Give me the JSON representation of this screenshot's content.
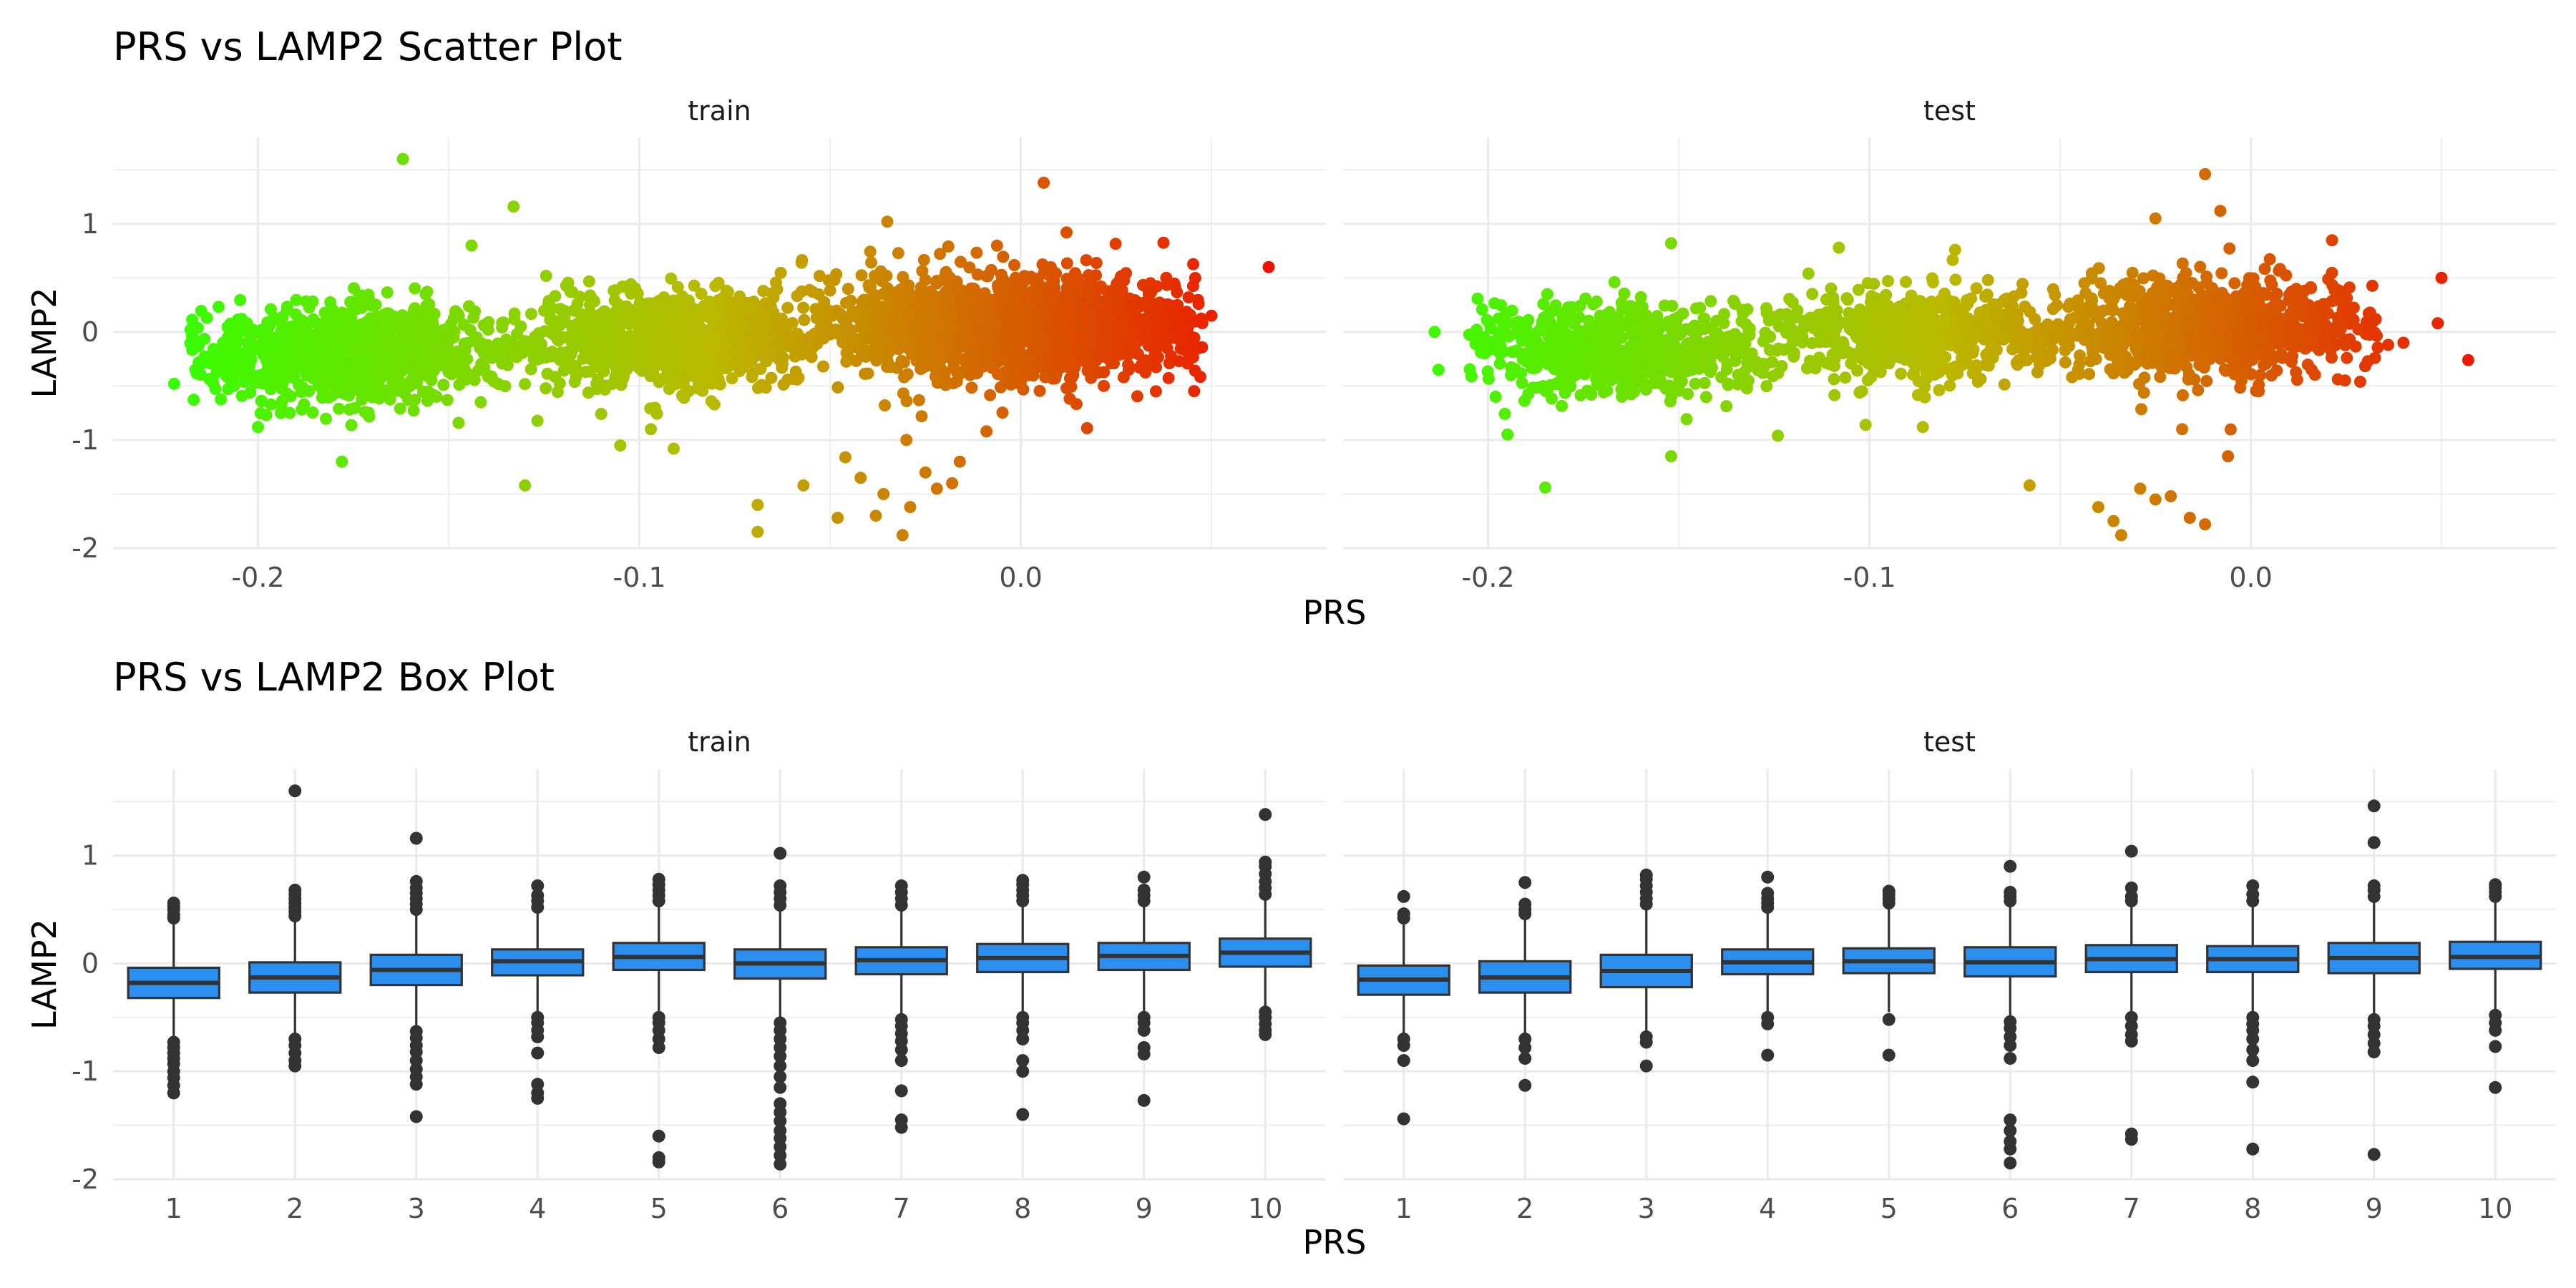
{
  "chart_data": [
    {
      "type": "scatter",
      "title": "PRS vs LAMP2 Scatter Plot",
      "xlabel": "PRS",
      "ylabel": "LAMP2",
      "color_scale": {
        "low": "#33ff00",
        "mid": "#bbb800",
        "high": "#ee1100"
      },
      "panels": [
        {
          "strip": "train",
          "xlim": [
            -0.238,
            0.08
          ],
          "ylim": [
            -2,
            1.8
          ],
          "xticks": [
            -0.2,
            -0.1,
            0.0
          ],
          "xtick_labels": [
            "-0.2",
            "-0.1",
            "0.0"
          ],
          "yticks": [
            -2,
            -1,
            0,
            1
          ],
          "ytick_labels": [
            "-2",
            "-1",
            "0",
            "1"
          ],
          "clusters": [
            {
              "x_min": -0.218,
              "x_max": -0.135,
              "x_center": -0.175,
              "y_mean": -0.2,
              "y_sd": 0.22,
              "n": 1000
            },
            {
              "x_min": -0.135,
              "x_max": -0.058,
              "x_center": -0.09,
              "y_mean": -0.08,
              "y_sd": 0.22,
              "n": 900
            },
            {
              "x_min": -0.058,
              "x_max": 0.048,
              "x_center": 0.0,
              "y_mean": 0.05,
              "y_sd": 0.24,
              "n": 1400
            }
          ],
          "outliers": [
            {
              "x": -0.162,
              "y": 1.6
            },
            {
              "x": -0.133,
              "y": 1.16
            },
            {
              "x": -0.035,
              "y": 1.02
            },
            {
              "x": 0.006,
              "y": 1.38
            },
            {
              "x": 0.065,
              "y": 0.6
            },
            {
              "x": 0.012,
              "y": 0.92
            },
            {
              "x": -0.13,
              "y": -1.42
            },
            {
              "x": -0.069,
              "y": -1.85
            },
            {
              "x": -0.069,
              "y": -1.6
            },
            {
              "x": -0.048,
              "y": -1.72
            },
            {
              "x": -0.031,
              "y": -1.88
            },
            {
              "x": -0.042,
              "y": -1.35
            },
            {
              "x": -0.036,
              "y": -1.5
            },
            {
              "x": -0.029,
              "y": -1.62
            },
            {
              "x": -0.022,
              "y": -1.45
            },
            {
              "x": -0.018,
              "y": -1.4
            },
            {
              "x": -0.057,
              "y": -1.42
            },
            {
              "x": -0.038,
              "y": -1.7
            },
            {
              "x": -0.025,
              "y": -1.3
            },
            {
              "x": -0.016,
              "y": -1.2
            },
            {
              "x": -0.03,
              "y": -1.0
            },
            {
              "x": -0.046,
              "y": -1.16
            },
            {
              "x": -0.009,
              "y": -0.92
            },
            {
              "x": -0.026,
              "y": -0.78
            },
            {
              "x": -0.178,
              "y": -1.2
            },
            {
              "x": -0.2,
              "y": -0.88
            },
            {
              "x": -0.194,
              "y": -0.75
            },
            {
              "x": -0.105,
              "y": -1.05
            },
            {
              "x": -0.097,
              "y": -0.9
            },
            {
              "x": -0.091,
              "y": -1.08
            },
            {
              "x": -0.222,
              "y": -0.48
            },
            {
              "x": -0.215,
              "y": -0.3
            },
            {
              "x": 0.044,
              "y": 0.32
            },
            {
              "x": 0.05,
              "y": 0.15
            },
            {
              "x": 0.034,
              "y": 0.45
            },
            {
              "x": -0.144,
              "y": 0.8
            }
          ]
        },
        {
          "strip": "test",
          "xlim": [
            -0.238,
            0.08
          ],
          "ylim": [
            -2,
            1.8
          ],
          "xticks": [
            -0.2,
            -0.1,
            0.0
          ],
          "xtick_labels": [
            "-0.2",
            "-0.1",
            "0.0"
          ],
          "yticks": [
            -2,
            -1,
            0,
            1
          ],
          "ytick_labels": [
            "-2",
            "-1",
            "0",
            "1"
          ],
          "clusters": [
            {
              "x_min": -0.206,
              "x_max": -0.125,
              "x_center": -0.165,
              "y_mean": -0.18,
              "y_sd": 0.22,
              "n": 650
            },
            {
              "x_min": -0.125,
              "x_max": -0.05,
              "x_center": -0.085,
              "y_mean": -0.02,
              "y_sd": 0.22,
              "n": 600
            },
            {
              "x_min": -0.05,
              "x_max": 0.034,
              "x_center": -0.012,
              "y_mean": 0.05,
              "y_sd": 0.24,
              "n": 850
            }
          ],
          "outliers": [
            {
              "x": -0.012,
              "y": 1.46
            },
            {
              "x": -0.008,
              "y": 1.12
            },
            {
              "x": -0.025,
              "y": 1.05
            },
            {
              "x": 0.057,
              "y": -0.26
            },
            {
              "x": 0.05,
              "y": 0.5
            },
            {
              "x": 0.049,
              "y": 0.08
            },
            {
              "x": -0.185,
              "y": -1.44
            },
            {
              "x": -0.058,
              "y": -1.42
            },
            {
              "x": -0.04,
              "y": -1.62
            },
            {
              "x": -0.036,
              "y": -1.75
            },
            {
              "x": -0.034,
              "y": -1.88
            },
            {
              "x": -0.029,
              "y": -1.45
            },
            {
              "x": -0.025,
              "y": -1.55
            },
            {
              "x": -0.021,
              "y": -1.52
            },
            {
              "x": -0.016,
              "y": -1.72
            },
            {
              "x": -0.012,
              "y": -1.78
            },
            {
              "x": -0.006,
              "y": -1.15
            },
            {
              "x": -0.018,
              "y": -0.9
            },
            {
              "x": -0.152,
              "y": -1.15
            },
            {
              "x": -0.124,
              "y": -0.96
            },
            {
              "x": -0.101,
              "y": -0.86
            },
            {
              "x": -0.086,
              "y": -0.88
            },
            {
              "x": -0.213,
              "y": -0.35
            },
            {
              "x": -0.214,
              "y": 0.0
            },
            {
              "x": -0.198,
              "y": -0.6
            },
            {
              "x": -0.152,
              "y": 0.82
            },
            {
              "x": -0.108,
              "y": 0.78
            },
            {
              "x": 0.036,
              "y": -0.12
            },
            {
              "x": 0.04,
              "y": -0.1
            }
          ]
        }
      ]
    },
    {
      "type": "box",
      "title": "PRS vs LAMP2 Box Plot",
      "xlabel": "PRS",
      "ylabel": "LAMP2",
      "fill_color": "#2b8ff0",
      "categories": [
        "1",
        "2",
        "3",
        "4",
        "5",
        "6",
        "7",
        "8",
        "9",
        "10"
      ],
      "panels": [
        {
          "strip": "train",
          "ylim": [
            -2,
            1.8
          ],
          "yticks": [
            -2,
            -1,
            0,
            1
          ],
          "ytick_labels": [
            "-2",
            "-1",
            "0",
            "1"
          ],
          "boxes": [
            {
              "label": "1",
              "q1": -0.32,
              "median": -0.18,
              "q3": -0.04,
              "wlo": -0.7,
              "whi": 0.4,
              "outliers": [
                0.42,
                0.45,
                0.5,
                0.53,
                0.56,
                -0.73,
                -0.78,
                -0.83,
                -0.88,
                -0.93,
                -1.0,
                -1.06,
                -1.13,
                -1.2
              ]
            },
            {
              "label": "2",
              "q1": -0.27,
              "median": -0.13,
              "q3": 0.01,
              "wlo": -0.65,
              "whi": 0.4,
              "outliers": [
                0.44,
                0.48,
                0.52,
                0.56,
                0.6,
                0.64,
                0.68,
                1.6,
                -0.7,
                -0.76,
                -0.83,
                -0.9,
                -0.95
              ]
            },
            {
              "label": "3",
              "q1": -0.2,
              "median": -0.06,
              "q3": 0.08,
              "wlo": -0.6,
              "whi": 0.45,
              "outliers": [
                0.5,
                0.55,
                0.6,
                0.65,
                0.7,
                0.76,
                1.16,
                -0.63,
                -0.69,
                -0.76,
                -0.82,
                -0.9,
                -0.98,
                -1.05,
                -1.12,
                -1.42
              ]
            },
            {
              "label": "4",
              "q1": -0.11,
              "median": 0.02,
              "q3": 0.13,
              "wlo": -0.45,
              "whi": 0.48,
              "outliers": [
                0.52,
                0.58,
                0.63,
                0.72,
                -0.5,
                -0.55,
                -0.62,
                -0.68,
                -0.83,
                -1.12,
                -1.2,
                -1.25
              ]
            },
            {
              "label": "5",
              "q1": -0.06,
              "median": 0.06,
              "q3": 0.19,
              "wlo": -0.44,
              "whi": 0.55,
              "outliers": [
                0.58,
                0.63,
                0.68,
                0.73,
                0.78,
                -0.5,
                -0.55,
                -0.62,
                -0.7,
                -0.78,
                -1.6,
                -1.8,
                -1.84
              ]
            },
            {
              "label": "6",
              "q1": -0.14,
              "median": 0.0,
              "q3": 0.13,
              "wlo": -0.52,
              "whi": 0.5,
              "outliers": [
                0.54,
                0.6,
                0.66,
                0.72,
                1.02,
                -0.55,
                -0.62,
                -0.7,
                -0.78,
                -0.86,
                -0.95,
                -1.05,
                -1.15,
                -1.3,
                -1.38,
                -1.46,
                -1.55,
                -1.62,
                -1.7,
                -1.78,
                -1.86
              ]
            },
            {
              "label": "7",
              "q1": -0.1,
              "median": 0.03,
              "q3": 0.15,
              "wlo": -0.48,
              "whi": 0.5,
              "outliers": [
                0.54,
                0.6,
                0.66,
                0.72,
                -0.52,
                -0.58,
                -0.65,
                -0.72,
                -0.8,
                -0.9,
                -1.18,
                -1.45,
                -1.52
              ]
            },
            {
              "label": "8",
              "q1": -0.08,
              "median": 0.05,
              "q3": 0.18,
              "wlo": -0.46,
              "whi": 0.55,
              "outliers": [
                0.58,
                0.63,
                0.68,
                0.73,
                0.77,
                -0.5,
                -0.55,
                -0.62,
                -0.7,
                -0.9,
                -1.0,
                -1.4
              ]
            },
            {
              "label": "9",
              "q1": -0.06,
              "median": 0.07,
              "q3": 0.19,
              "wlo": -0.44,
              "whi": 0.55,
              "outliers": [
                0.58,
                0.63,
                0.68,
                0.8,
                -0.5,
                -0.55,
                -0.62,
                -0.78,
                -0.84,
                -1.27
              ]
            },
            {
              "label": "10",
              "q1": -0.03,
              "median": 0.1,
              "q3": 0.23,
              "wlo": -0.41,
              "whi": 0.6,
              "outliers": [
                0.64,
                0.7,
                0.76,
                0.83,
                0.9,
                0.94,
                1.38,
                -0.45,
                -0.5,
                -0.56,
                -0.62,
                -0.66
              ]
            }
          ]
        },
        {
          "strip": "test",
          "ylim": [
            -2,
            1.8
          ],
          "yticks": [
            -2,
            -1,
            0,
            1
          ],
          "ytick_labels": [
            "-2",
            "-1",
            "0",
            "1"
          ],
          "boxes": [
            {
              "label": "1",
              "q1": -0.29,
              "median": -0.15,
              "q3": -0.02,
              "wlo": -0.67,
              "whi": 0.38,
              "outliers": [
                0.42,
                0.46,
                0.62,
                -0.7,
                -0.76,
                -0.9,
                -1.44
              ]
            },
            {
              "label": "2",
              "q1": -0.27,
              "median": -0.13,
              "q3": 0.02,
              "wlo": -0.65,
              "whi": 0.42,
              "outliers": [
                0.46,
                0.5,
                0.55,
                0.75,
                -0.7,
                -0.78,
                -0.88,
                -1.13
              ]
            },
            {
              "label": "3",
              "q1": -0.22,
              "median": -0.07,
              "q3": 0.08,
              "wlo": -0.64,
              "whi": 0.5,
              "outliers": [
                0.55,
                0.6,
                0.66,
                0.72,
                0.78,
                0.82,
                -0.68,
                -0.73,
                -0.95
              ]
            },
            {
              "label": "4",
              "q1": -0.1,
              "median": 0.01,
              "q3": 0.13,
              "wlo": -0.45,
              "whi": 0.48,
              "outliers": [
                0.52,
                0.56,
                0.6,
                0.65,
                0.8,
                -0.5,
                -0.56,
                -0.85
              ]
            },
            {
              "label": "5",
              "q1": -0.09,
              "median": 0.02,
              "q3": 0.14,
              "wlo": -0.45,
              "whi": 0.52,
              "outliers": [
                0.56,
                0.6,
                0.64,
                0.67,
                -0.52,
                -0.85
              ]
            },
            {
              "label": "6",
              "q1": -0.12,
              "median": 0.01,
              "q3": 0.15,
              "wlo": -0.5,
              "whi": 0.55,
              "outliers": [
                0.58,
                0.62,
                0.66,
                0.9,
                -0.54,
                -0.6,
                -0.68,
                -0.76,
                -0.88,
                -1.45,
                -1.55,
                -1.65,
                -1.72,
                -1.85
              ]
            },
            {
              "label": "7",
              "q1": -0.08,
              "median": 0.04,
              "q3": 0.17,
              "wlo": -0.47,
              "whi": 0.55,
              "outliers": [
                0.58,
                0.62,
                0.7,
                1.04,
                -0.5,
                -0.58,
                -0.66,
                -0.72,
                -1.58,
                -1.63
              ]
            },
            {
              "label": "8",
              "q1": -0.08,
              "median": 0.04,
              "q3": 0.16,
              "wlo": -0.46,
              "whi": 0.55,
              "outliers": [
                0.58,
                0.64,
                0.72,
                -0.5,
                -0.56,
                -0.62,
                -0.7,
                -0.8,
                -0.9,
                -1.1,
                -1.72
              ]
            },
            {
              "label": "9",
              "q1": -0.09,
              "median": 0.05,
              "q3": 0.19,
              "wlo": -0.48,
              "whi": 0.58,
              "outliers": [
                0.62,
                0.68,
                0.72,
                1.12,
                1.46,
                -0.52,
                -0.58,
                -0.66,
                -0.74,
                -0.82,
                -1.77
              ]
            },
            {
              "label": "10",
              "q1": -0.05,
              "median": 0.06,
              "q3": 0.2,
              "wlo": -0.43,
              "whi": 0.58,
              "outliers": [
                0.62,
                0.66,
                0.7,
                0.73,
                -0.48,
                -0.55,
                -0.62,
                -0.77,
                -1.15
              ]
            }
          ]
        }
      ]
    }
  ]
}
